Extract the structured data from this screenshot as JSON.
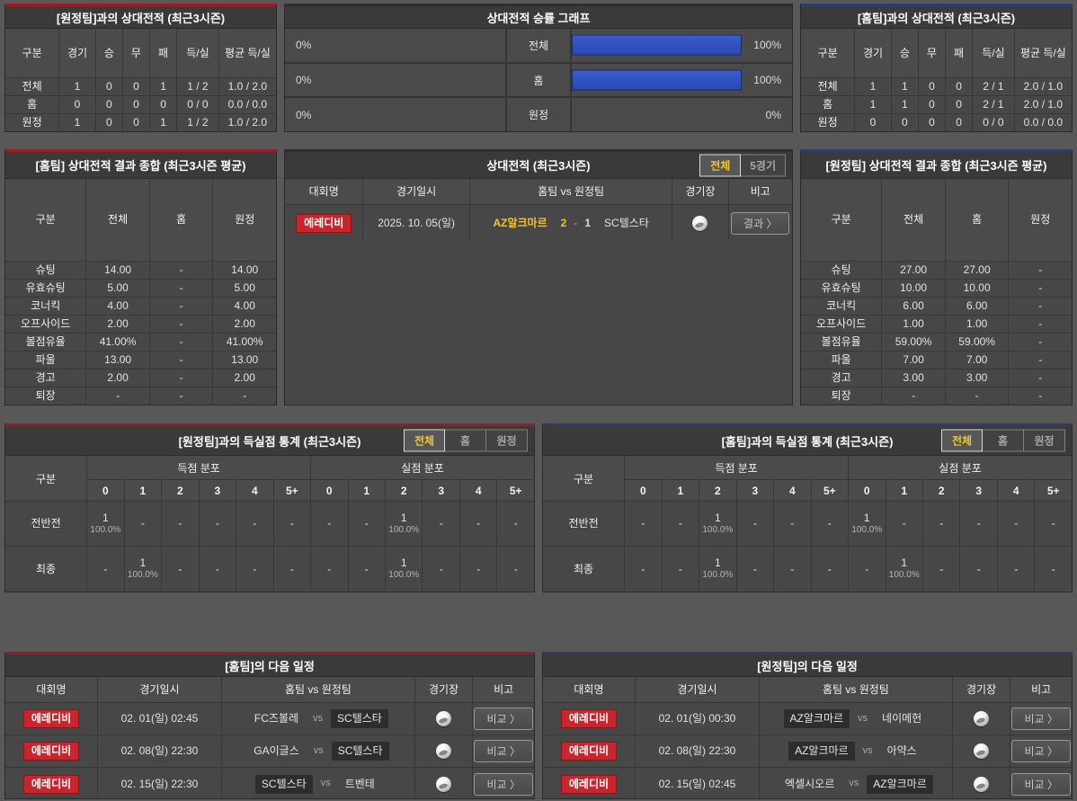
{
  "colors": {
    "accent_red": "#9a1b23",
    "accent_navy": "#2c3e68",
    "bar_blue": "#2d4fbe",
    "badge_red": "#c9252d",
    "highlight_yellow": "#f3c52f"
  },
  "h2h_home": {
    "title": "[원정팀]과의 상대전적 (최근3시즌)",
    "headers": [
      "구분",
      "경기",
      "승",
      "무",
      "패",
      "득/실",
      "평균 득/실"
    ],
    "rows": [
      {
        "label": "전체",
        "games": "1",
        "win": "0",
        "draw": "0",
        "lose": "1",
        "goals": "1 / 2",
        "avg": "1.0 / 2.0"
      },
      {
        "label": "홈",
        "games": "0",
        "win": "0",
        "draw": "0",
        "lose": "0",
        "goals": "0 / 0",
        "avg": "0.0 / 0.0"
      },
      {
        "label": "원정",
        "games": "1",
        "win": "0",
        "draw": "0",
        "lose": "1",
        "goals": "1 / 2",
        "avg": "1.0 / 2.0"
      }
    ]
  },
  "win_graph": {
    "title": "상대전적 승률 그래프",
    "rows": [
      {
        "left_pct": "0%",
        "label": "전체",
        "right_pct": "100%",
        "left_bar": "0%",
        "right_bar": "77%"
      },
      {
        "left_pct": "0%",
        "label": "홈",
        "right_pct": "100%",
        "left_bar": "0%",
        "right_bar": "77%"
      },
      {
        "left_pct": "0%",
        "label": "원정",
        "right_pct": "0%",
        "left_bar": "0%",
        "right_bar": "0%"
      }
    ]
  },
  "h2h_away": {
    "title": "[홈팀]과의 상대전적 (최근3시즌)",
    "headers": [
      "구분",
      "경기",
      "승",
      "무",
      "패",
      "득/실",
      "평균 득/실"
    ],
    "rows": [
      {
        "label": "전체",
        "games": "1",
        "win": "1",
        "draw": "0",
        "lose": "0",
        "goals": "2 / 1",
        "avg": "2.0 / 1.0"
      },
      {
        "label": "홈",
        "games": "1",
        "win": "1",
        "draw": "0",
        "lose": "0",
        "goals": "2 / 1",
        "avg": "2.0 / 1.0"
      },
      {
        "label": "원정",
        "games": "0",
        "win": "0",
        "draw": "0",
        "lose": "0",
        "goals": "0 / 0",
        "avg": "0.0 / 0.0"
      }
    ]
  },
  "stats_home": {
    "title": "[홈팀] 상대전적 결과 종합 (최근3시즌 평균)",
    "headers": [
      "구분",
      "전체",
      "홈",
      "원정"
    ],
    "rows": [
      {
        "label": "슈팅",
        "total": "14.00",
        "home": "-",
        "away": "14.00"
      },
      {
        "label": "유효슈팅",
        "total": "5.00",
        "home": "-",
        "away": "5.00"
      },
      {
        "label": "코너킥",
        "total": "4.00",
        "home": "-",
        "away": "4.00"
      },
      {
        "label": "오프사이드",
        "total": "2.00",
        "home": "-",
        "away": "2.00"
      },
      {
        "label": "볼점유율",
        "total": "41.00%",
        "home": "-",
        "away": "41.00%"
      },
      {
        "label": "파울",
        "total": "13.00",
        "home": "-",
        "away": "13.00"
      },
      {
        "label": "경고",
        "total": "2.00",
        "home": "-",
        "away": "2.00"
      },
      {
        "label": "퇴장",
        "total": "-",
        "home": "-",
        "away": "-"
      }
    ]
  },
  "match_history": {
    "title": "상대전적 (최근3시즌)",
    "tabs": [
      {
        "label": "전체",
        "active": true
      },
      {
        "label": "5경기",
        "active": false
      }
    ],
    "headers": {
      "league": "대회명",
      "datetime": "경기일시",
      "teams": "홈팀  vs  원정팀",
      "stadium": "경기장",
      "remark": "비고"
    },
    "rows": [
      {
        "league": "에레디비",
        "datetime": "2025. 10. 05(일)",
        "home": "AZ알크마르",
        "home_score": "2",
        "sep": "-",
        "away_score": "1",
        "away": "SC텔스타",
        "home_win": true,
        "away_win": false,
        "button": "결과 〉"
      }
    ]
  },
  "stats_away": {
    "title": "[원정팀] 상대전적 결과 종합 (최근3시즌 평균)",
    "headers": [
      "구분",
      "전체",
      "홈",
      "원정"
    ],
    "rows": [
      {
        "label": "슈팅",
        "total": "27.00",
        "home": "27.00",
        "away": "-"
      },
      {
        "label": "유효슈팅",
        "total": "10.00",
        "home": "10.00",
        "away": "-"
      },
      {
        "label": "코너킥",
        "total": "6.00",
        "home": "6.00",
        "away": "-"
      },
      {
        "label": "오프사이드",
        "total": "1.00",
        "home": "1.00",
        "away": "-"
      },
      {
        "label": "볼점유율",
        "total": "59.00%",
        "home": "59.00%",
        "away": "-"
      },
      {
        "label": "파울",
        "total": "7.00",
        "home": "7.00",
        "away": "-"
      },
      {
        "label": "경고",
        "total": "3.00",
        "home": "3.00",
        "away": "-"
      },
      {
        "label": "퇴장",
        "total": "-",
        "home": "-",
        "away": "-"
      }
    ]
  },
  "goals_vs_away": {
    "title": "[원정팀]과의 득실점 통계 (최근3시즌)",
    "tabs": [
      {
        "label": "전체",
        "active": true
      },
      {
        "label": "홈",
        "active": false
      },
      {
        "label": "원정",
        "active": false
      }
    ],
    "col_label": "구분",
    "group_goal": "득점 분포",
    "group_concede": "실점 분포",
    "score_cols": [
      "0",
      "1",
      "2",
      "3",
      "4",
      "5+"
    ],
    "rows": [
      {
        "label": "전반전",
        "g": [
          {
            "n": "1",
            "p": "100.0%"
          },
          {
            "n": "-",
            "p": ""
          },
          {
            "n": "-",
            "p": ""
          },
          {
            "n": "-",
            "p": ""
          },
          {
            "n": "-",
            "p": ""
          },
          {
            "n": "-",
            "p": ""
          }
        ],
        "a": [
          {
            "n": "-",
            "p": ""
          },
          {
            "n": "-",
            "p": ""
          },
          {
            "n": "1",
            "p": "100.0%"
          },
          {
            "n": "-",
            "p": ""
          },
          {
            "n": "-",
            "p": ""
          },
          {
            "n": "-",
            "p": ""
          }
        ]
      },
      {
        "label": "최종",
        "g": [
          {
            "n": "-",
            "p": ""
          },
          {
            "n": "1",
            "p": "100.0%"
          },
          {
            "n": "-",
            "p": ""
          },
          {
            "n": "-",
            "p": ""
          },
          {
            "n": "-",
            "p": ""
          },
          {
            "n": "-",
            "p": ""
          }
        ],
        "a": [
          {
            "n": "-",
            "p": ""
          },
          {
            "n": "-",
            "p": ""
          },
          {
            "n": "1",
            "p": "100.0%"
          },
          {
            "n": "-",
            "p": ""
          },
          {
            "n": "-",
            "p": ""
          },
          {
            "n": "-",
            "p": ""
          }
        ]
      }
    ]
  },
  "goals_vs_home": {
    "title": "[홈팀]과의 득실점 통계 (최근3시즌)",
    "tabs": [
      {
        "label": "전체",
        "active": true
      },
      {
        "label": "홈",
        "active": false
      },
      {
        "label": "원정",
        "active": false
      }
    ],
    "col_label": "구분",
    "group_goal": "득점 분포",
    "group_concede": "실점 분포",
    "score_cols": [
      "0",
      "1",
      "2",
      "3",
      "4",
      "5+"
    ],
    "rows": [
      {
        "label": "전반전",
        "g": [
          {
            "n": "-",
            "p": ""
          },
          {
            "n": "-",
            "p": ""
          },
          {
            "n": "1",
            "p": "100.0%"
          },
          {
            "n": "-",
            "p": ""
          },
          {
            "n": "-",
            "p": ""
          },
          {
            "n": "-",
            "p": ""
          }
        ],
        "a": [
          {
            "n": "1",
            "p": "100.0%"
          },
          {
            "n": "-",
            "p": ""
          },
          {
            "n": "-",
            "p": ""
          },
          {
            "n": "-",
            "p": ""
          },
          {
            "n": "-",
            "p": ""
          },
          {
            "n": "-",
            "p": ""
          }
        ]
      },
      {
        "label": "최종",
        "g": [
          {
            "n": "-",
            "p": ""
          },
          {
            "n": "-",
            "p": ""
          },
          {
            "n": "1",
            "p": "100.0%"
          },
          {
            "n": "-",
            "p": ""
          },
          {
            "n": "-",
            "p": ""
          },
          {
            "n": "-",
            "p": ""
          }
        ],
        "a": [
          {
            "n": "-",
            "p": ""
          },
          {
            "n": "1",
            "p": "100.0%"
          },
          {
            "n": "-",
            "p": ""
          },
          {
            "n": "-",
            "p": ""
          },
          {
            "n": "-",
            "p": ""
          },
          {
            "n": "-",
            "p": ""
          }
        ]
      }
    ]
  },
  "schedule_home": {
    "title": "[홈팀]의 다음 일정",
    "headers": {
      "league": "대회명",
      "datetime": "경기일시",
      "teams": "홈팀  vs  원정팀",
      "stadium": "경기장",
      "remark": "비고"
    },
    "vs_label": "vs",
    "rows": [
      {
        "league": "에레디비",
        "datetime": "02. 01(일) 02:45",
        "home": "FC즈볼레",
        "away": "SC텔스타",
        "home_hl": false,
        "away_hl": true,
        "button": "비교 〉"
      },
      {
        "league": "에레디비",
        "datetime": "02. 08(일) 22:30",
        "home": "GA이글스",
        "away": "SC텔스타",
        "home_hl": false,
        "away_hl": true,
        "button": "비교 〉"
      },
      {
        "league": "에레디비",
        "datetime": "02. 15(일) 22:30",
        "home": "SC텔스타",
        "away": "트벤테",
        "home_hl": true,
        "away_hl": false,
        "button": "비교 〉"
      }
    ]
  },
  "schedule_away": {
    "title": "[원정팀]의 다음 일정",
    "headers": {
      "league": "대회명",
      "datetime": "경기일시",
      "teams": "홈팀  vs  원정팀",
      "stadium": "경기장",
      "remark": "비고"
    },
    "vs_label": "vs",
    "rows": [
      {
        "league": "에레디비",
        "datetime": "02. 01(일) 00:30",
        "home": "AZ알크마르",
        "away": "네이메헌",
        "home_hl": true,
        "away_hl": false,
        "button": "비교 〉"
      },
      {
        "league": "에레디비",
        "datetime": "02. 08(일) 22:30",
        "home": "AZ알크마르",
        "away": "아약스",
        "home_hl": true,
        "away_hl": false,
        "button": "비교 〉"
      },
      {
        "league": "에레디비",
        "datetime": "02. 15(일) 02:45",
        "home": "엑셀시오르",
        "away": "AZ알크마르",
        "home_hl": false,
        "away_hl": true,
        "button": "비교 〉"
      }
    ]
  }
}
